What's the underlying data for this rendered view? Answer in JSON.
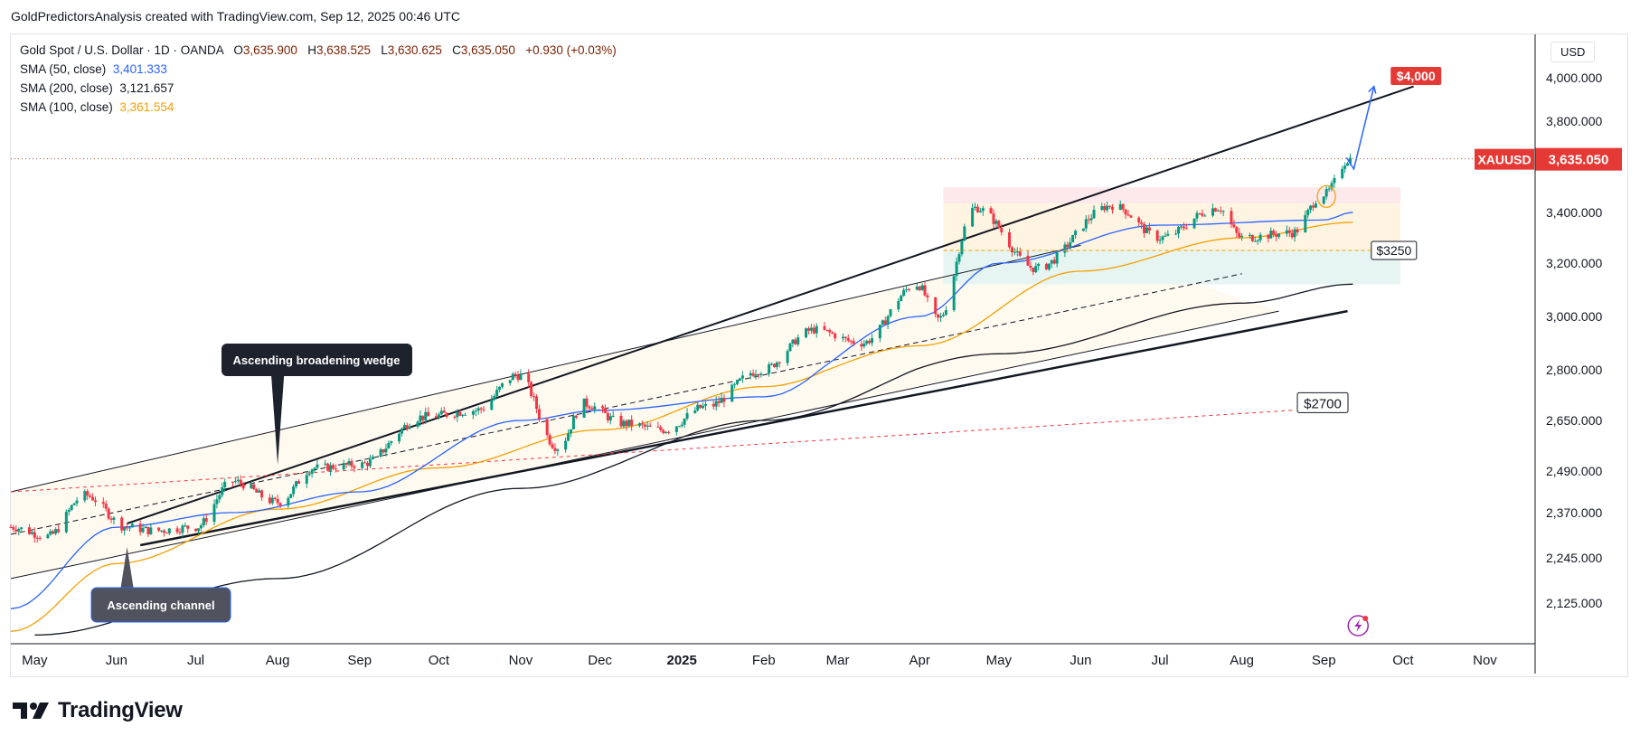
{
  "header": {
    "publisher_line": "GoldPredictorsAnalysis created with TradingView.com, Sep 12, 2025 00:46 UTC"
  },
  "legend": {
    "symbol": "Gold Spot / U.S. Dollar · 1D · OANDA",
    "o_label": "O",
    "o_value": "3,635.900",
    "h_label": "H",
    "h_value": "3,638.525",
    "l_label": "L",
    "l_value": "3,630.625",
    "c_label": "C",
    "c_value": "3,635.050",
    "change": "+0.930 (+0.03%)",
    "sma50_label": "SMA (50, close)",
    "sma50_value": "3,401.333",
    "sma200_label": "SMA (200, close)",
    "sma200_value": "3,121.657",
    "sma100_label": "SMA (100, close)",
    "sma100_value": "3,361.554"
  },
  "axis": {
    "currency": "USD",
    "price_ticks": [
      "4,000.000",
      "3,800.000",
      "3,400.000",
      "3,200.000",
      "3,000.000",
      "2,800.000",
      "2,650.000",
      "2,490.000",
      "2,370.000",
      "2,245.000",
      "2,125.000"
    ],
    "months": [
      "May",
      "Jun",
      "Jul",
      "Aug",
      "Sep",
      "Oct",
      "Nov",
      "Dec",
      "2025",
      "Feb",
      "Mar",
      "Apr",
      "May",
      "Jun",
      "Jul",
      "Aug",
      "Sep",
      "Oct",
      "Nov"
    ]
  },
  "annotations": {
    "wedge_label": "Ascending broadening wedge",
    "channel_label": "Ascending channel",
    "target_label": "$4,000",
    "resistance_label": "$3250",
    "support_label": "$2700"
  },
  "price_tag": {
    "symbol": "XAUUSD",
    "price": "3,635.050"
  },
  "brand": {
    "name": "TradingView"
  },
  "colors": {
    "bullish": "#089981",
    "bearish": "#f23645",
    "sma50": "#2962ff",
    "sma100": "#f59f00",
    "sma200": "#131722",
    "tag": "#e53935"
  },
  "chart_data": {
    "type": "candlestick",
    "title": "Gold Spot / U.S. Dollar · 1D · OANDA",
    "x_range": [
      "2024-04-22",
      "2025-11-20"
    ],
    "y_range": [
      2040,
      4150
    ],
    "ohlc_last": {
      "open": 3635.9,
      "high": 3638.525,
      "low": 3630.625,
      "close": 3635.05
    },
    "path_anchors": [
      [
        "2024-04-22",
        2330
      ],
      [
        "2024-05-06",
        2305
      ],
      [
        "2024-05-20",
        2420
      ],
      [
        "2024-06-05",
        2330
      ],
      [
        "2024-06-15",
        2320
      ],
      [
        "2024-07-01",
        2330
      ],
      [
        "2024-07-15",
        2460
      ],
      [
        "2024-08-01",
        2400
      ],
      [
        "2024-08-15",
        2500
      ],
      [
        "2024-09-01",
        2510
      ],
      [
        "2024-09-25",
        2660
      ],
      [
        "2024-10-15",
        2680
      ],
      [
        "2024-10-31",
        2785
      ],
      [
        "2024-11-15",
        2565
      ],
      [
        "2024-11-25",
        2700
      ],
      [
        "2024-12-10",
        2640
      ],
      [
        "2024-12-25",
        2620
      ],
      [
        "2025-01-10",
        2690
      ],
      [
        "2025-01-31",
        2800
      ],
      [
        "2025-02-20",
        2950
      ],
      [
        "2025-03-10",
        2900
      ],
      [
        "2025-03-31",
        3120
      ],
      [
        "2025-04-08",
        2990
      ],
      [
        "2025-04-22",
        3420
      ],
      [
        "2025-05-15",
        3180
      ],
      [
        "2025-06-13",
        3430
      ],
      [
        "2025-07-01",
        3300
      ],
      [
        "2025-07-23",
        3420
      ],
      [
        "2025-08-01",
        3300
      ],
      [
        "2025-08-20",
        3320
      ],
      [
        "2025-09-01",
        3480
      ],
      [
        "2025-09-11",
        3635
      ]
    ],
    "sma50_anchors": [
      [
        "2024-04-22",
        2110
      ],
      [
        "2024-06-01",
        2330
      ],
      [
        "2024-07-15",
        2370
      ],
      [
        "2024-09-01",
        2430
      ],
      [
        "2024-11-01",
        2650
      ],
      [
        "2024-12-01",
        2680
      ],
      [
        "2025-02-01",
        2720
      ],
      [
        "2025-04-01",
        3000
      ],
      [
        "2025-05-01",
        3200
      ],
      [
        "2025-07-01",
        3350
      ],
      [
        "2025-09-01",
        3370
      ],
      [
        "2025-09-12",
        3401
      ]
    ],
    "sma100_anchors": [
      [
        "2024-04-22",
        2050
      ],
      [
        "2024-06-01",
        2230
      ],
      [
        "2024-08-01",
        2380
      ],
      [
        "2024-10-01",
        2500
      ],
      [
        "2024-12-01",
        2620
      ],
      [
        "2025-02-01",
        2750
      ],
      [
        "2025-04-01",
        2890
      ],
      [
        "2025-06-01",
        3170
      ],
      [
        "2025-08-01",
        3300
      ],
      [
        "2025-09-12",
        3361
      ]
    ],
    "sma200_anchors": [
      [
        "2024-05-01",
        2040
      ],
      [
        "2024-08-01",
        2190
      ],
      [
        "2024-11-01",
        2440
      ],
      [
        "2025-02-01",
        2650
      ],
      [
        "2025-05-01",
        2860
      ],
      [
        "2025-08-01",
        3050
      ],
      [
        "2025-09-12",
        3121
      ]
    ],
    "trendlines": {
      "wedge_upper": [
        [
          "2024-06-05",
          2340
        ],
        [
          "2025-10-05",
          3960
        ]
      ],
      "wedge_lower": [
        [
          "2024-06-10",
          2280
        ],
        [
          "2025-09-10",
          3020
        ]
      ],
      "channel_upper": [
        [
          "2024-04-22",
          2430
        ],
        [
          "2025-06-01",
          3270
        ]
      ],
      "channel_lower": [
        [
          "2024-04-22",
          2190
        ],
        [
          "2025-08-15",
          3020
        ]
      ],
      "channel_mid": [
        [
          "2024-04-22",
          2310
        ],
        [
          "2025-08-01",
          3160
        ]
      ],
      "support_dashed": [
        [
          "2024-04-22",
          2430
        ],
        [
          "2025-08-20",
          2680
        ]
      ]
    },
    "zones": [
      {
        "name": "resistance",
        "from": "2025-04-10",
        "to": "2025-09-30",
        "low": 3440,
        "high": 3510
      },
      {
        "name": "range",
        "from": "2025-04-10",
        "to": "2025-09-30",
        "low": 3250,
        "high": 3440
      },
      {
        "name": "support",
        "from": "2025-04-10",
        "to": "2025-09-30",
        "low": 3120,
        "high": 3250
      }
    ],
    "levels": {
      "target": 4000,
      "resistance": 3250,
      "support": 2700,
      "last": 3635.05
    }
  }
}
